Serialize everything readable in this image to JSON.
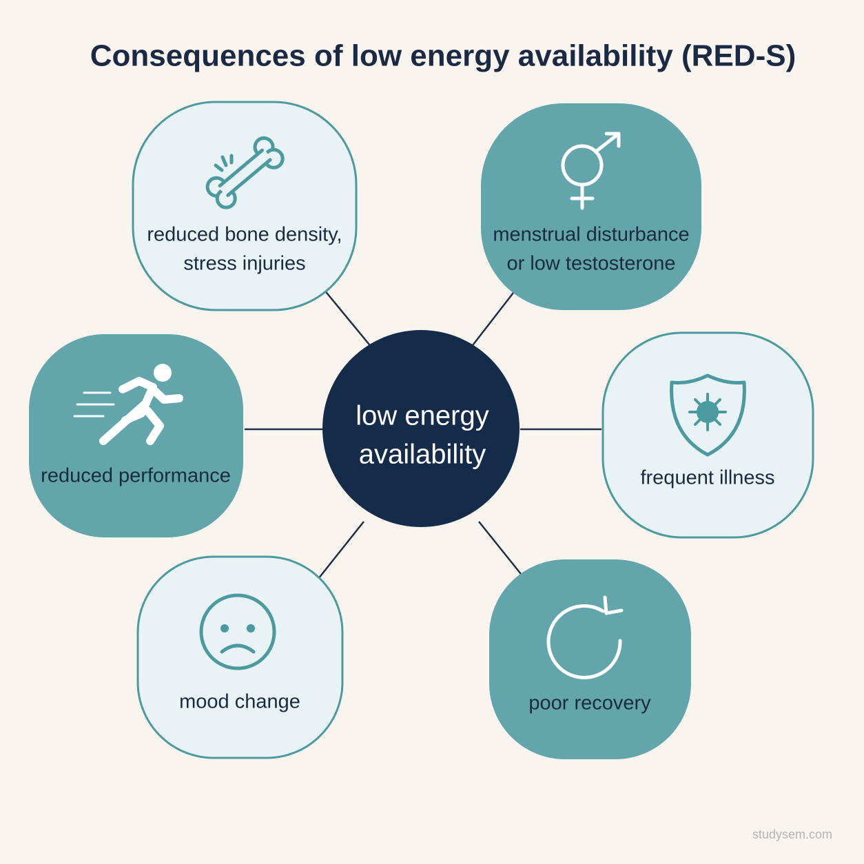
{
  "title": "Consequences of low energy availability (RED-S)",
  "center": {
    "lines": [
      "low energy",
      "availability"
    ]
  },
  "nodes": [
    {
      "lines": [
        "reduced bone density,",
        "stress injuries"
      ]
    },
    {
      "lines": [
        "menstrual disturbance",
        "or low testosterone"
      ]
    },
    {
      "lines": [
        "reduced performance"
      ]
    },
    {
      "lines": [
        "frequent illness"
      ]
    },
    {
      "lines": [
        "mood change"
      ]
    },
    {
      "lines": [
        "poor recovery"
      ]
    }
  ],
  "watermark": "studysem.com"
}
